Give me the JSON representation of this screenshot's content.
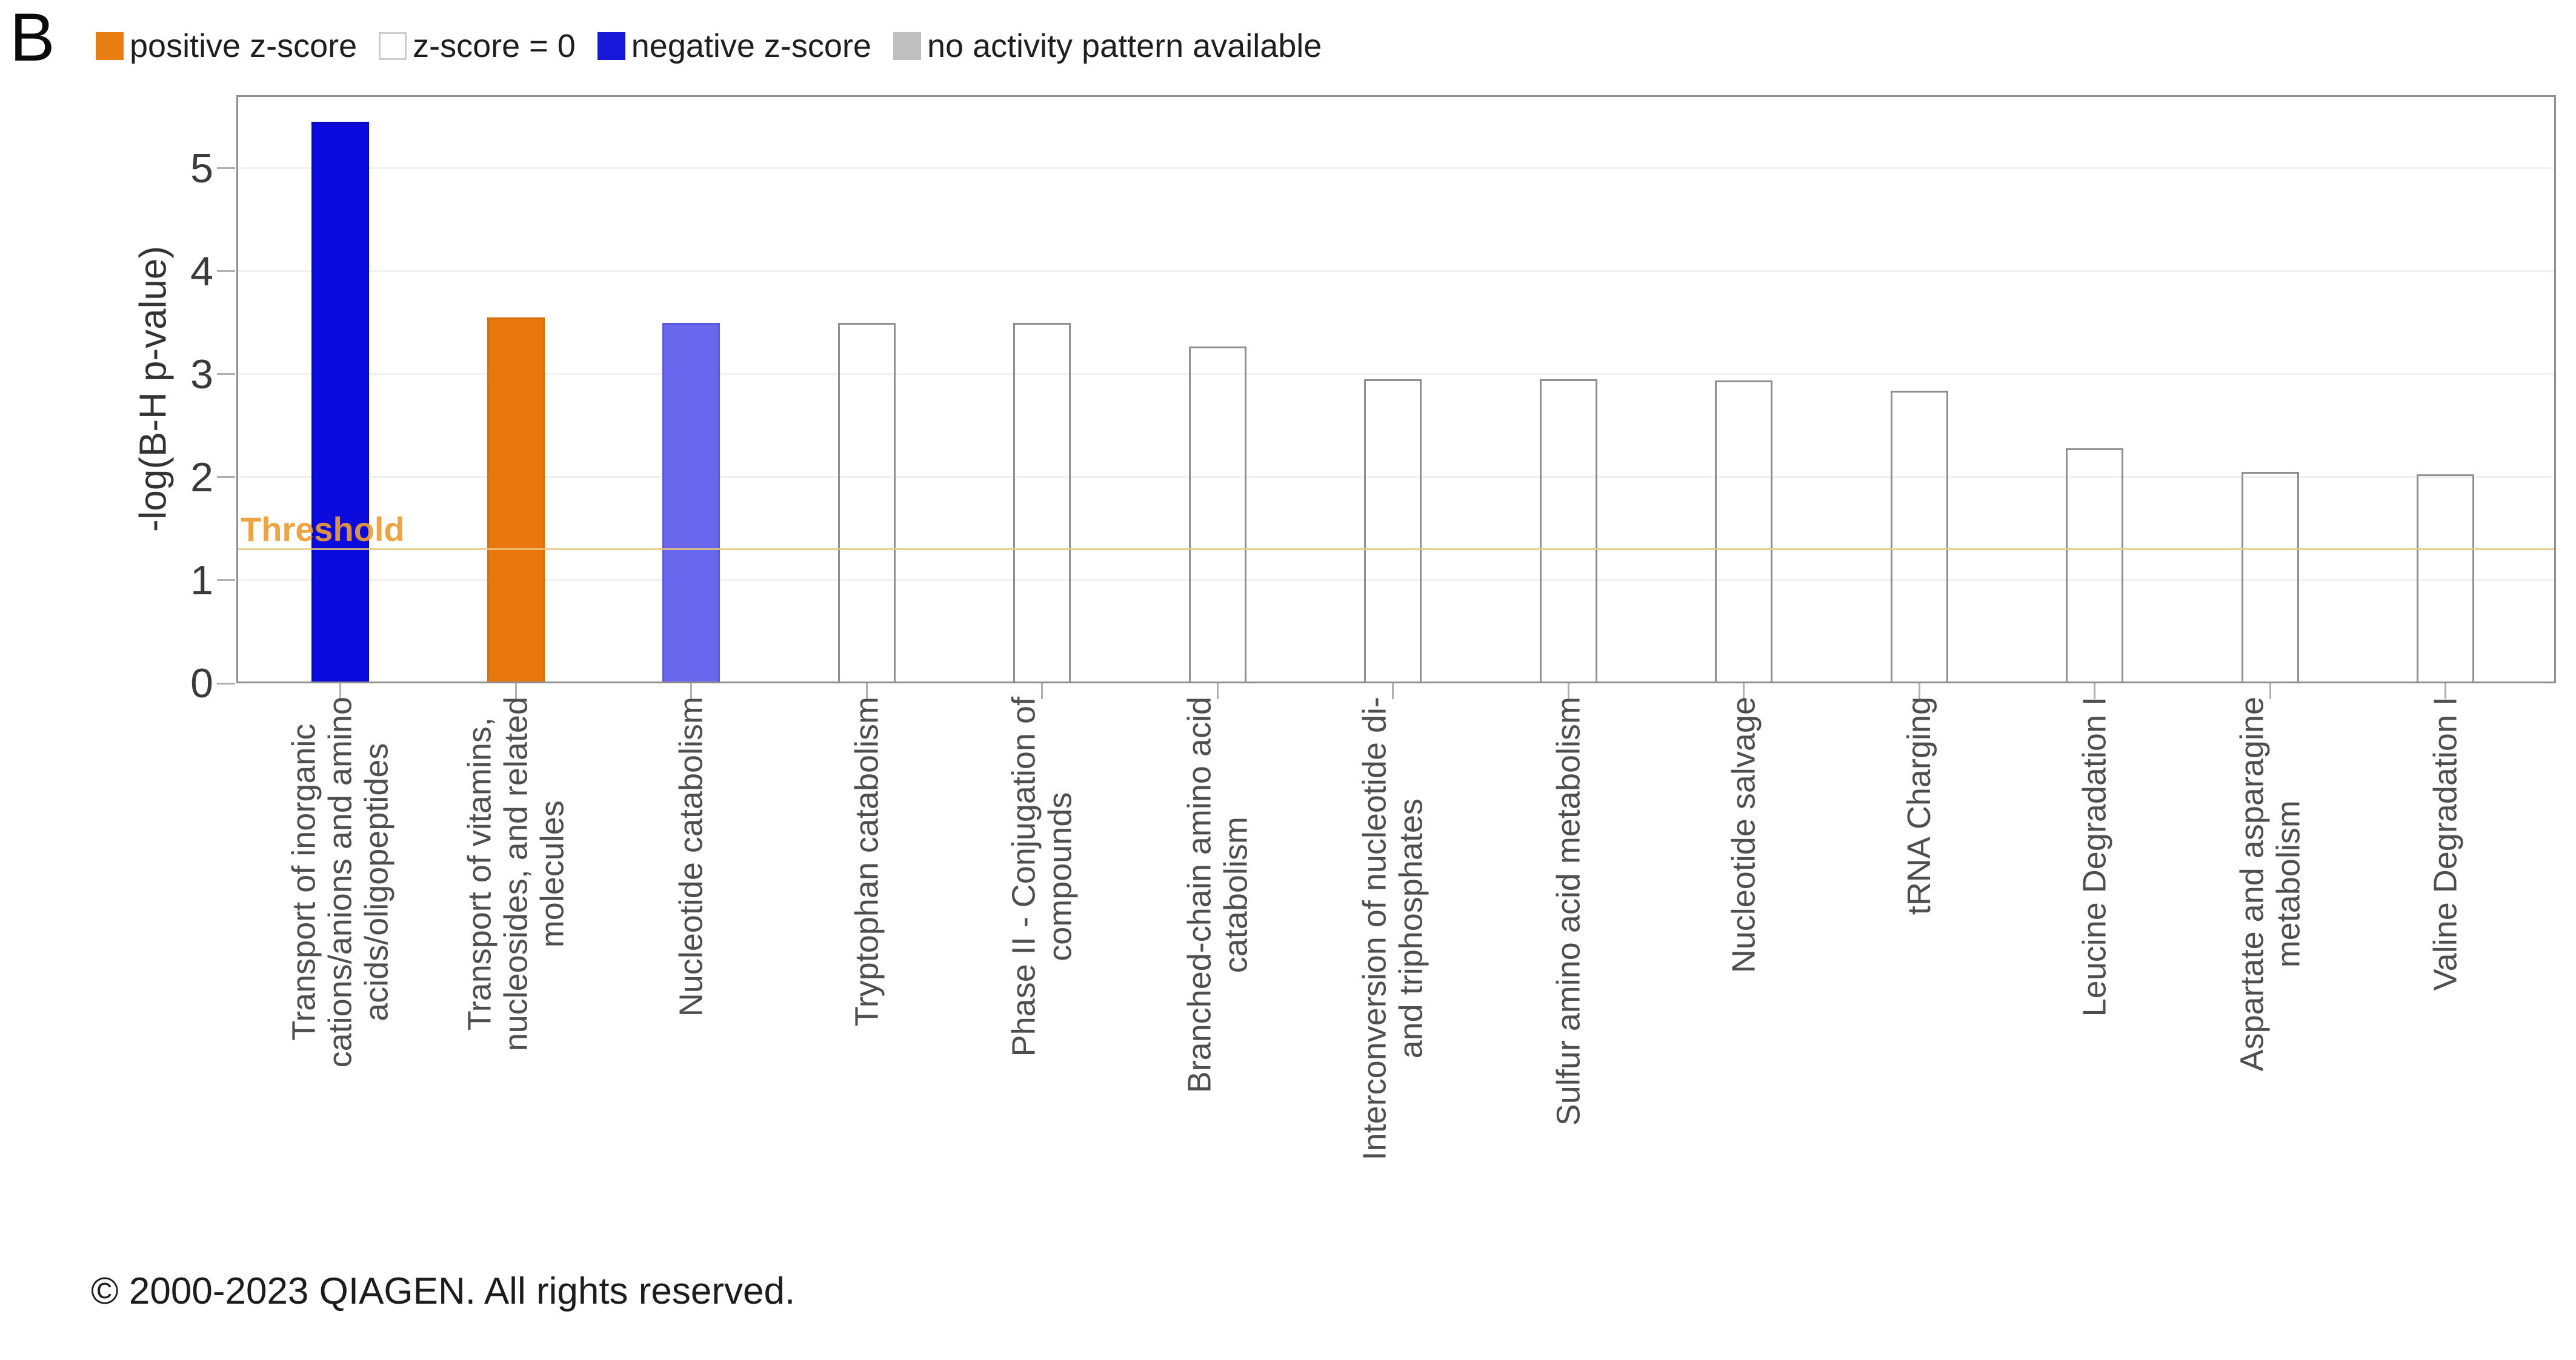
{
  "panel_label": "B",
  "legend": {
    "items": [
      {
        "name": "positive-z-score",
        "label": "positive z-score",
        "color": "#e87d12",
        "border": "#e87d12"
      },
      {
        "name": "z-score-zero",
        "label": "z-score = 0",
        "color": "#ffffff",
        "border": "#cccccc"
      },
      {
        "name": "negative-z-score",
        "label": "negative z-score",
        "color": "#1717d9",
        "border": "#1717d9"
      },
      {
        "name": "no-activity-pattern",
        "label": "no activity pattern available",
        "color": "#bfbfbf",
        "border": "#bfbfbf"
      }
    ]
  },
  "chart_data": {
    "type": "bar",
    "title": "",
    "xlabel": "",
    "ylabel": "-log(B-H p-value)",
    "ylim": [
      0,
      5.71
    ],
    "yticks": [
      0,
      1,
      2,
      3,
      4,
      5
    ],
    "grid": "horizontal-light",
    "legend_position": "top-left",
    "threshold": {
      "value": 1.3,
      "label": "Threshold"
    },
    "categories": [
      "Transport of inorganic cations/anions and amino acids/oligopeptides",
      "Transport of vitamins, nucleosides, and related molecules",
      "Nucleotide catabolism",
      "Tryptophan catabolism",
      "Phase II - Conjugation of compounds",
      "Branched-chain amino acid catabolism",
      "Interconversion of nucleotide di- and triphosphates",
      "Sulfur amino acid metabolism",
      "Nucleotide salvage",
      "tRNA Charging",
      "Leucine Degradation I",
      "Aspartate and asparagine metabolism",
      "Valine Degradation I"
    ],
    "category_lines": [
      [
        "Transport of inorganic",
        "cations/anions and amino",
        "acids/oligopeptides"
      ],
      [
        "Transport of vitamins,",
        "nucleosides, and related",
        "molecules"
      ],
      [
        "Nucleotide catabolism"
      ],
      [
        "Tryptophan catabolism"
      ],
      [
        "Phase II - Conjugation of",
        "compounds"
      ],
      [
        "Branched-chain amino acid",
        "catabolism"
      ],
      [
        "Interconversion of nucleotide di-",
        "and triphosphates"
      ],
      [
        "Sulfur amino acid metabolism"
      ],
      [
        "Nucleotide salvage"
      ],
      [
        "tRNA Charging"
      ],
      [
        "Leucine Degradation I"
      ],
      [
        "Aspartate and asparagine",
        "metabolism"
      ],
      [
        "Valine Degradation I"
      ]
    ],
    "values": [
      5.45,
      3.55,
      3.5,
      3.5,
      3.5,
      3.27,
      2.95,
      2.95,
      2.94,
      2.84,
      2.28,
      2.05,
      2.03
    ],
    "z_direction": [
      "negative",
      "positive",
      "negative",
      "zero",
      "zero",
      "zero",
      "zero",
      "zero",
      "zero",
      "zero",
      "zero",
      "zero",
      "zero"
    ],
    "bar_fills": [
      "#0b0bdd",
      "#e8770e",
      "#6a67ee",
      "transparent",
      "transparent",
      "transparent",
      "transparent",
      "transparent",
      "transparent",
      "transparent",
      "transparent",
      "transparent",
      "transparent"
    ],
    "bar_borders": [
      "#0808bf",
      "#d66d08",
      "#5b58d8",
      "#8f8f8f",
      "#8f8f8f",
      "#8f8f8f",
      "#8f8f8f",
      "#8f8f8f",
      "#8f8f8f",
      "#8f8f8f",
      "#8f8f8f",
      "#8f8f8f",
      "#8f8f8f"
    ],
    "colors": {
      "threshold_line": "#e9c87e",
      "threshold_label": "#ee9d33",
      "axis_frame": "#8f8f8f",
      "gridline": "#f1f1f1",
      "tick": "#b0b0b0",
      "y_tick_label_color": "#3a3a3a",
      "x_tick_label_color": "#4e4e4e"
    }
  },
  "footer": {
    "copyright": "© 2000-2023 QIAGEN. All rights reserved."
  }
}
